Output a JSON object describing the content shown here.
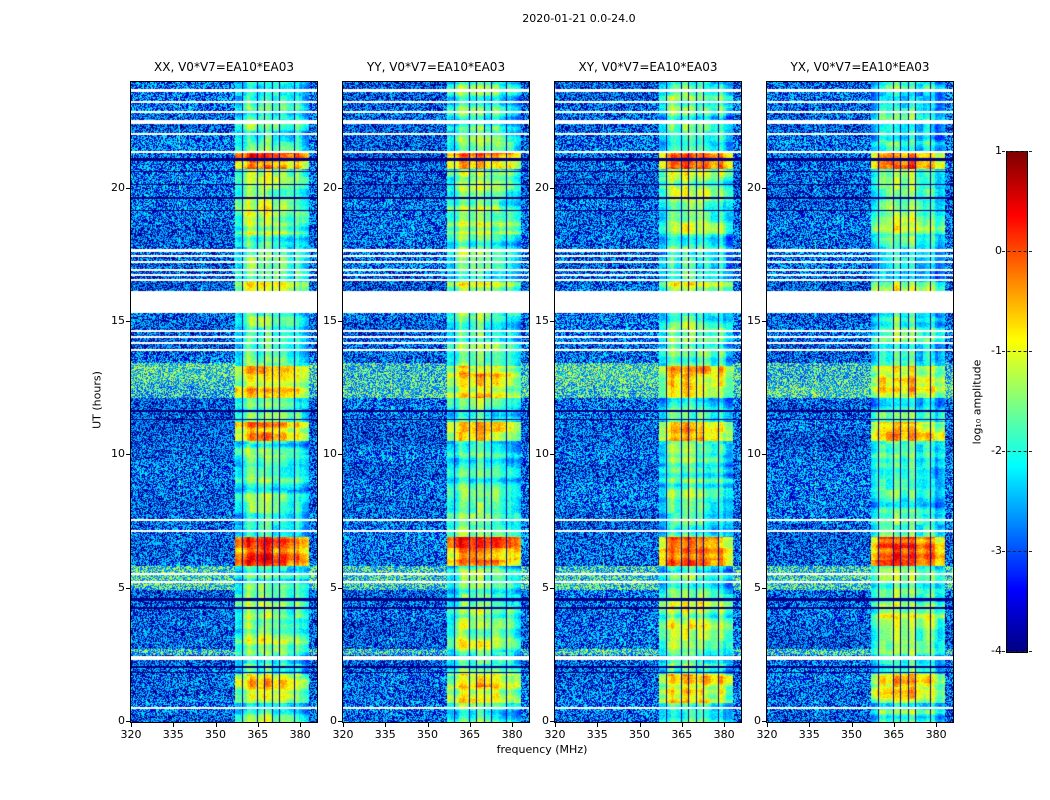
{
  "chart_data": {
    "type": "heatmap",
    "title": "2020-01-21 0.0-24.0",
    "xlabel": "frequency (MHz)",
    "ylabel": "UT (hours)",
    "colorbar_label": "log₁₀ amplitude",
    "colormap": "jet",
    "clim": [
      -4,
      1
    ],
    "x_range": [
      320,
      386
    ],
    "y_range": [
      0,
      24
    ],
    "x_ticks": [
      "320",
      "335",
      "350",
      "365",
      "380"
    ],
    "x_tick_values": [
      320,
      335,
      350,
      365,
      380
    ],
    "y_ticks": [
      "0",
      "5",
      "10",
      "15",
      "20"
    ],
    "y_tick_values": [
      0,
      5,
      10,
      15,
      20
    ],
    "colorbar_ticks": [
      "1",
      "0",
      "-1",
      "-2",
      "-3",
      "-4"
    ],
    "colorbar_tick_values": [
      1,
      0,
      -1,
      -2,
      -3,
      -4
    ],
    "grid": false,
    "panels": [
      {
        "label": "XX, V0*V7=EA10*EA03",
        "seed": 11
      },
      {
        "label": "YY, V0*V7=EA10*EA03",
        "seed": 23
      },
      {
        "label": "XY, V0*V7=EA10*EA03",
        "seed": 37
      },
      {
        "label": "YX, V0*V7=EA10*EA03",
        "seed": 51
      }
    ],
    "features": {
      "background_level": -3.35,
      "rfi_band": {
        "f_start": 356.8,
        "f_end": 383.2,
        "base_level": -1.0,
        "subband_width": 2.64
      },
      "gap_intervals_ut": [
        [
          23.62,
          23.72
        ],
        [
          23.22,
          23.3
        ],
        [
          22.82,
          22.9
        ],
        [
          22.42,
          22.56
        ],
        [
          22.02,
          22.1
        ],
        [
          21.32,
          21.4
        ],
        [
          17.62,
          17.72
        ],
        [
          17.42,
          17.5
        ],
        [
          17.2,
          17.28
        ],
        [
          16.92,
          17.0
        ],
        [
          16.72,
          16.8
        ],
        [
          16.52,
          16.6
        ],
        [
          15.35,
          16.15
        ],
        [
          14.62,
          14.7
        ],
        [
          14.4,
          14.48
        ],
        [
          14.16,
          14.24
        ],
        [
          13.92,
          14.0
        ],
        [
          7.52,
          7.62
        ],
        [
          7.12,
          7.2
        ],
        [
          5.52,
          5.6
        ],
        [
          5.22,
          5.3
        ],
        [
          2.32,
          2.48
        ],
        [
          0.48,
          0.55
        ]
      ],
      "dark_intervals_ut": [
        [
          21.02,
          21.14
        ],
        [
          20.62,
          20.68
        ],
        [
          20.12,
          20.18
        ],
        [
          19.62,
          19.68
        ],
        [
          19.15,
          19.2
        ],
        [
          11.62,
          11.7
        ],
        [
          11.32,
          11.38
        ],
        [
          4.52,
          4.66
        ],
        [
          4.22,
          4.3
        ],
        [
          2.02,
          2.1
        ],
        [
          1.82,
          1.88
        ]
      ],
      "bright_events": [
        [
          20.75,
          21.35,
          1.6
        ],
        [
          18.3,
          20.7,
          0.45
        ],
        [
          16.15,
          16.5,
          0.6
        ],
        [
          12.15,
          13.35,
          1.0
        ],
        [
          10.55,
          11.25,
          1.2
        ],
        [
          5.85,
          6.95,
          1.7
        ],
        [
          2.5,
          4.5,
          0.45
        ],
        [
          0.7,
          1.8,
          0.9
        ]
      ],
      "elevated_intervals_ut": [
        [
          12.15,
          13.45
        ],
        [
          4.95,
          5.85
        ],
        [
          2.5,
          2.75
        ]
      ],
      "faint_vertical_lines_mhz": [
        {
          "f": 337.3,
          "boost": 0.5,
          "halfwidth": 0.25
        },
        {
          "f": 345.1,
          "boost": 0.28,
          "halfwidth": 0.2
        }
      ]
    }
  }
}
